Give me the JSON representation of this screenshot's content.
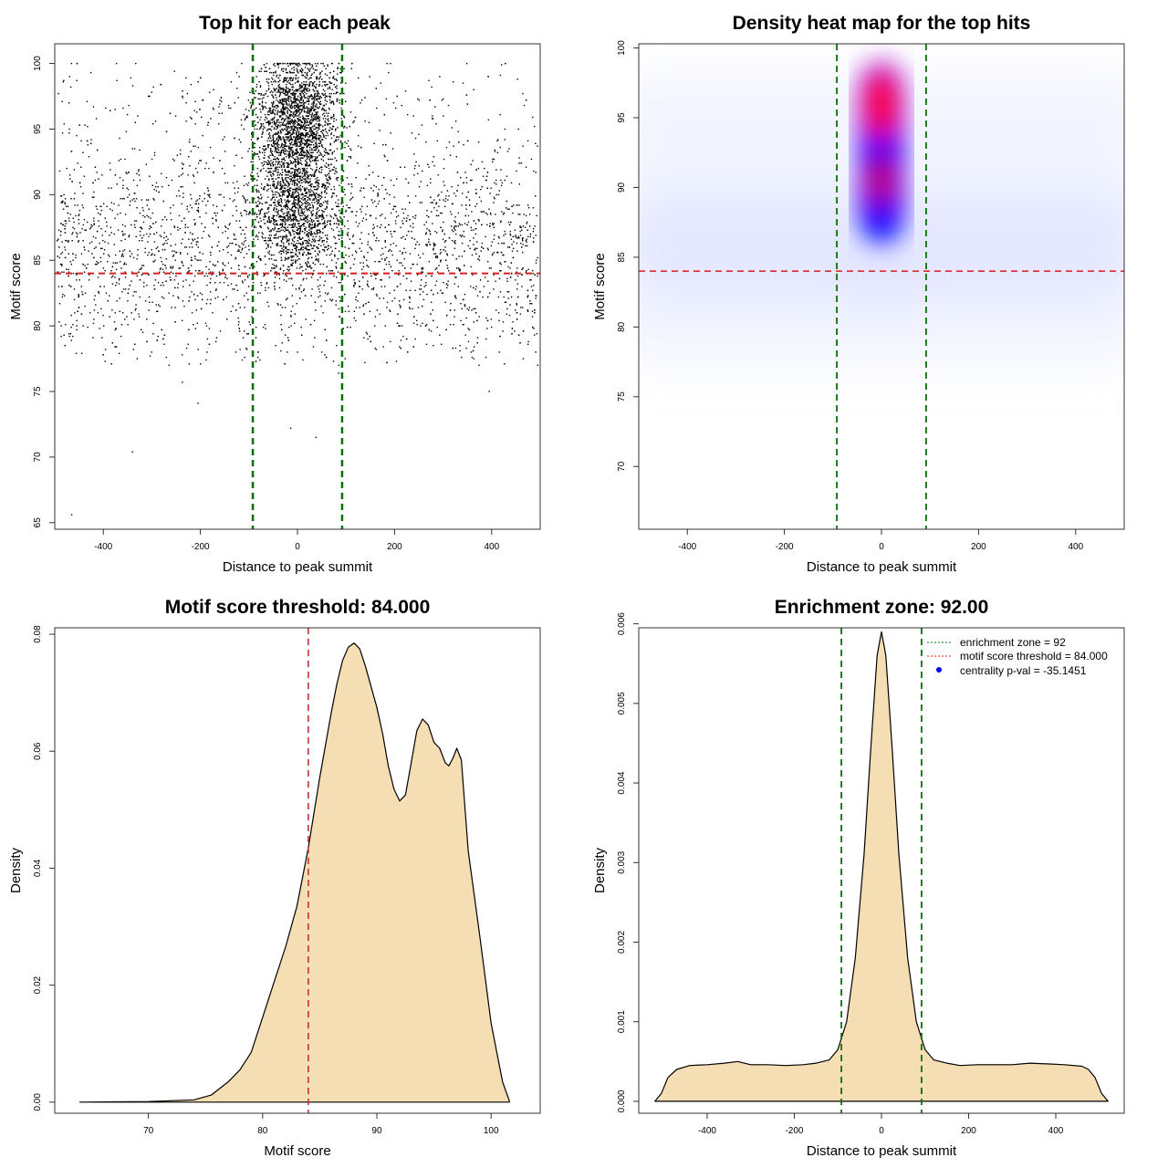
{
  "colors": {
    "threshold_line": "#dd1c1c",
    "zone_line": "#0a6f0a",
    "density_fill": "#f5deb3",
    "heat_low": "#e3e6ff",
    "heat_mid": "#0000ff",
    "heat_high": "#ff0000",
    "points": "#000000",
    "legend_point": "#0000ff"
  },
  "chart_data": [
    {
      "type": "scatter",
      "title": "Top hit for each peak",
      "xlabel": "Distance to peak summit",
      "ylabel": "Motif score",
      "xlim": [
        -500,
        500
      ],
      "ylim": [
        64.5,
        101.5
      ],
      "xticks": [
        -400,
        -200,
        0,
        200,
        400
      ],
      "yticks": [
        65,
        70,
        75,
        80,
        85,
        90,
        95,
        100
      ],
      "hline": 84.0,
      "vlines": [
        -92,
        92
      ],
      "grid": false,
      "outliers": [
        [
          -465,
          65.6
        ],
        [
          -340,
          70.4
        ],
        [
          -205,
          74.1
        ],
        [
          -237,
          75.7
        ],
        [
          -14,
          72.2
        ],
        [
          38,
          71.5
        ],
        [
          85,
          76.4
        ],
        [
          395,
          75.0
        ],
        [
          495,
          77.0
        ]
      ]
    },
    {
      "type": "heatmap",
      "title": "Density heat map for the top hits",
      "xlabel": "Distance to peak summit",
      "ylabel": "Motif score",
      "xlim": [
        -500,
        500
      ],
      "ylim": [
        65.5,
        100.3
      ],
      "xticks": [
        -400,
        -200,
        0,
        200,
        400
      ],
      "yticks": [
        70,
        75,
        80,
        85,
        90,
        95,
        100
      ],
      "hline": 84.0,
      "vlines": [
        -92,
        92
      ],
      "hotspot": {
        "x": 0,
        "y_range": [
          86,
          99
        ],
        "peak_y": 96
      }
    },
    {
      "type": "area",
      "title": "Motif score threshold: 84.000",
      "xlabel": "Motif score",
      "ylabel": "Density",
      "xlim": [
        61.8,
        104.3
      ],
      "ylim": [
        -0.0019,
        0.0811
      ],
      "xticks": [
        70,
        80,
        90,
        100
      ],
      "yticks": [
        0.0,
        0.02,
        0.04,
        0.06,
        0.08
      ],
      "ytick_labels": [
        "0.00",
        "0.02",
        "0.04",
        "0.06",
        "0.08"
      ],
      "vline": 84.0,
      "x": [
        64,
        70,
        74,
        75.5,
        77,
        78,
        79,
        80,
        81,
        82,
        83,
        84,
        85,
        86,
        86.5,
        87,
        87.5,
        88,
        88.5,
        89,
        89.5,
        90,
        90.5,
        91,
        91.5,
        92,
        92.5,
        93,
        93.5,
        94,
        94.5,
        95,
        95.5,
        96,
        96.3,
        96.7,
        97,
        97.4,
        98,
        99,
        100,
        101,
        101.6
      ],
      "y": [
        0.0,
        0.0001,
        0.0004,
        0.0012,
        0.0035,
        0.0055,
        0.0085,
        0.0145,
        0.0205,
        0.0265,
        0.0335,
        0.0435,
        0.0555,
        0.0665,
        0.0715,
        0.0755,
        0.0778,
        0.0785,
        0.0775,
        0.0745,
        0.071,
        0.0675,
        0.063,
        0.0575,
        0.0535,
        0.0515,
        0.0525,
        0.058,
        0.0635,
        0.0655,
        0.0645,
        0.0615,
        0.0605,
        0.058,
        0.0575,
        0.059,
        0.0605,
        0.0585,
        0.043,
        0.0285,
        0.0135,
        0.0035,
        0.0002
      ]
    },
    {
      "type": "area",
      "title": "Enrichment zone: 92.00",
      "xlabel": "Distance to peak summit",
      "ylabel": "Density",
      "xlim": [
        -557,
        557
      ],
      "ylim": [
        -0.00015,
        0.00595
      ],
      "xticks": [
        -400,
        -200,
        0,
        200,
        400
      ],
      "yticks": [
        0.0,
        0.001,
        0.002,
        0.003,
        0.004,
        0.005,
        0.006
      ],
      "ytick_labels": [
        "0.000",
        "0.001",
        "0.002",
        "0.003",
        "0.004",
        "0.005",
        "0.006"
      ],
      "vlines": [
        -92,
        92
      ],
      "x": [
        -520,
        -505,
        -490,
        -470,
        -440,
        -400,
        -360,
        -330,
        -300,
        -260,
        -220,
        -180,
        -150,
        -120,
        -100,
        -80,
        -60,
        -40,
        -25,
        -10,
        0,
        10,
        25,
        40,
        60,
        80,
        100,
        120,
        150,
        180,
        220,
        260,
        300,
        340,
        380,
        420,
        460,
        475,
        490,
        505,
        520
      ],
      "y": [
        0.0,
        0.0001,
        0.0003,
        0.0004,
        0.00045,
        0.00046,
        0.00048,
        0.0005,
        0.00046,
        0.00046,
        0.00045,
        0.00046,
        0.00048,
        0.00052,
        0.00065,
        0.001,
        0.0018,
        0.0031,
        0.0044,
        0.0056,
        0.0059,
        0.0056,
        0.0044,
        0.0031,
        0.0018,
        0.001,
        0.00065,
        0.00052,
        0.00048,
        0.00045,
        0.00046,
        0.00046,
        0.00046,
        0.00048,
        0.00047,
        0.00046,
        0.00044,
        0.0004,
        0.0003,
        0.0001,
        0.0
      ],
      "legend": {
        "placement": "top-right",
        "entries": [
          "enrichment zone = 92",
          "motif score threshold = 84.000",
          "centrality p-val = -35.1451"
        ]
      }
    }
  ]
}
